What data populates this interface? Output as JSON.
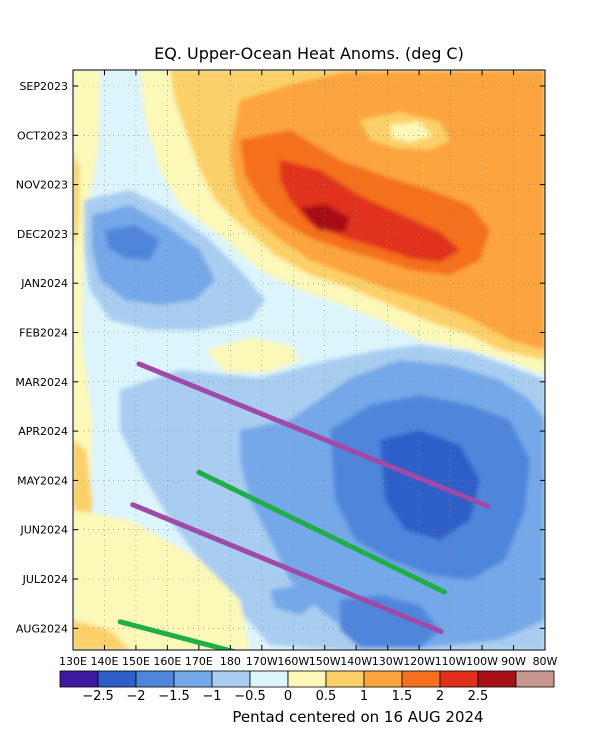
{
  "chart_data": {
    "type": "heatmap",
    "title": "EQ. Upper-Ocean Heat Anoms. (deg C)",
    "footer": "Pentad centered on 16 AUG 2024",
    "x_ticks": [
      "130E",
      "140E",
      "150E",
      "160E",
      "170E",
      "180",
      "170W",
      "160W",
      "150W",
      "140W",
      "130W",
      "120W",
      "110W",
      "100W",
      "90W",
      "80W"
    ],
    "y_ticks": [
      "SEP2023",
      "OCT2023",
      "NOV2023",
      "DEC2023",
      "JAN2024",
      "FEB2024",
      "MAR2024",
      "APR2024",
      "MAY2024",
      "JUN2024",
      "JUL2024",
      "AUG2024"
    ],
    "x_range_deg_east": [
      130,
      280
    ],
    "colorbar": {
      "labels": [
        "−2.5",
        "−2",
        "−1.5",
        "−1",
        "−0.5",
        "0",
        "0.5",
        "1",
        "1.5",
        "2",
        "2.5"
      ],
      "colors": [
        "#3c1aa0",
        "#2e5fc8",
        "#4f86dc",
        "#74a8e8",
        "#a8cdf0",
        "#dcf4fc",
        "#fcf8b8",
        "#fcd068",
        "#fca43c",
        "#f4701e",
        "#e0301c",
        "#a81018",
        "#c89890"
      ]
    },
    "grid": true,
    "annotations": [
      {
        "name": "purple-line-1",
        "color": "#a04aa8",
        "from": {
          "lon": 151,
          "date": "2024-03-04"
        },
        "to": {
          "lon": 262,
          "date": "2024-05-31"
        }
      },
      {
        "name": "purple-line-2",
        "color": "#a04aa8",
        "from": {
          "lon": 149,
          "date": "2024-05-30"
        },
        "to": {
          "lon": 247,
          "date": "2024-08-17"
        }
      },
      {
        "name": "green-line-1",
        "color": "#1fae48",
        "from": {
          "lon": 170,
          "date": "2024-05-10"
        },
        "to": {
          "lon": 248,
          "date": "2024-07-23"
        }
      },
      {
        "name": "green-line-2",
        "color": "#1fae48",
        "from": {
          "lon": 145,
          "date": "2024-08-11"
        },
        "to": {
          "lon": 189,
          "date": "2024-09-03"
        }
      }
    ]
  }
}
